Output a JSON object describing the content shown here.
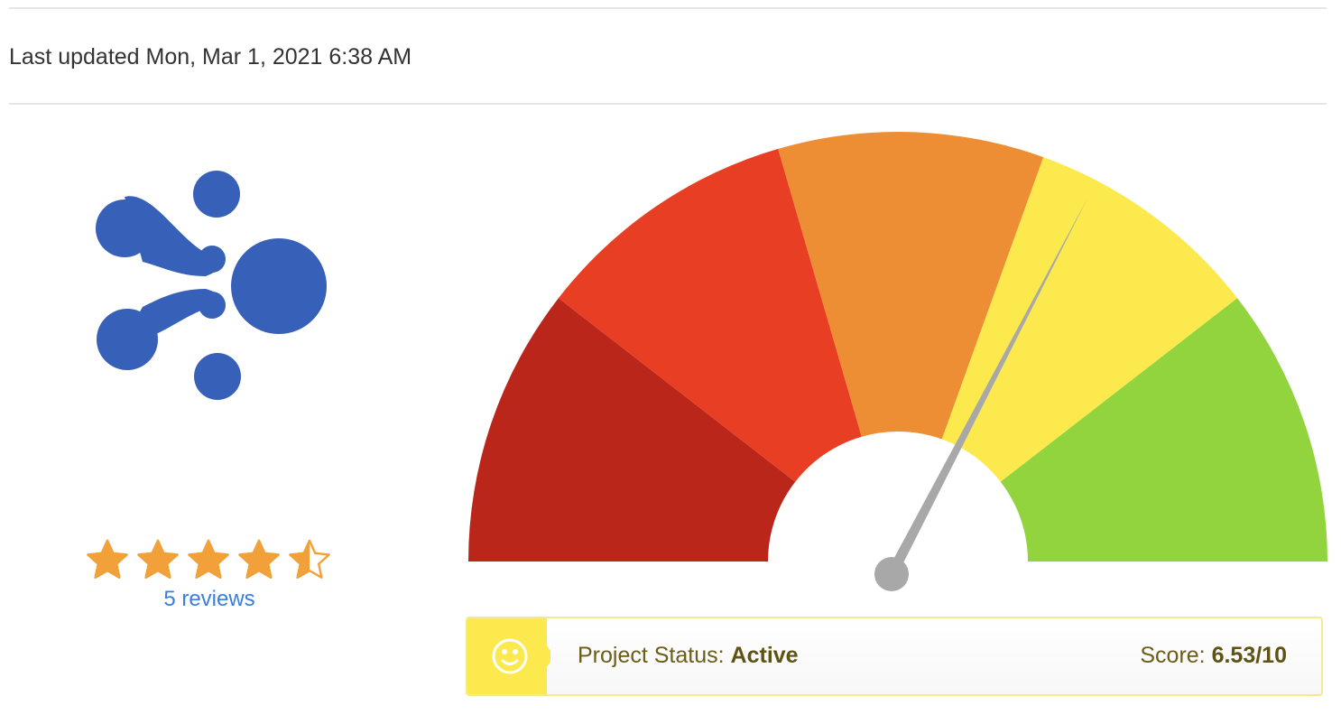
{
  "last_updated": "Last updated Mon, Mar 1, 2021 6:38 AM",
  "logo": {
    "icon": "molecule-dots-logo",
    "color": "#3760b8"
  },
  "rating": {
    "value": 4.5,
    "max": 5,
    "reviews_label": "5 reviews",
    "star_color": "#f2a13a"
  },
  "gauge": {
    "min": 0,
    "max": 10,
    "value": 6.53,
    "segments": [
      {
        "from": 0.0,
        "to": 2.1,
        "color": "#ba271a"
      },
      {
        "from": 2.1,
        "to": 4.1,
        "color": "#e83e24"
      },
      {
        "from": 4.1,
        "to": 6.1,
        "color": "#ee8e34"
      },
      {
        "from": 6.1,
        "to": 7.9,
        "color": "#fbe94e"
      },
      {
        "from": 7.9,
        "to": 10.0,
        "color": "#92d43e"
      }
    ],
    "needle_color": "#a8a8a8"
  },
  "status": {
    "icon": "smiley-icon",
    "icon_bg": "#fbe94e",
    "label": "Project Status: ",
    "value": "Active",
    "score_label": "Score: ",
    "score_value": "6.53/10"
  }
}
